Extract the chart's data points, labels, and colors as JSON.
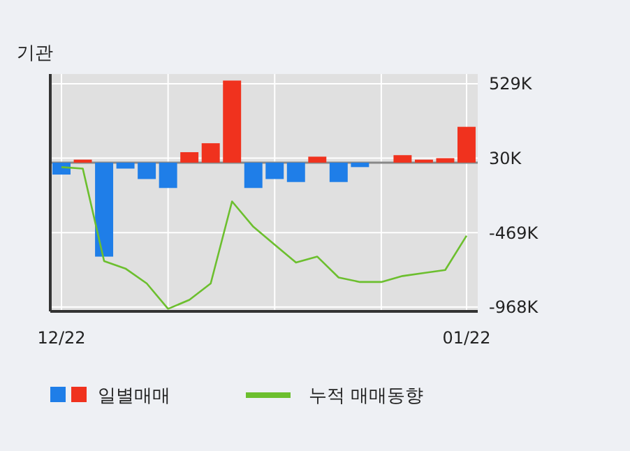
{
  "chart_data": {
    "type": "bar",
    "title": "기관",
    "categories": [
      "12/22",
      null,
      null,
      null,
      null,
      null,
      null,
      null,
      null,
      null,
      null,
      null,
      null,
      null,
      null,
      null,
      null,
      null,
      null,
      "01/22"
    ],
    "series": [
      {
        "name": "일별매매",
        "colors": [
          "#1f7ee8",
          "#f0321e",
          "#1f7ee8",
          "#1f7ee8",
          "#1f7ee8",
          "#1f7ee8",
          "#f0321e",
          "#f0321e",
          "#f0321e",
          "#1f7ee8",
          "#1f7ee8",
          "#1f7ee8",
          "#f0321e",
          "#1f7ee8",
          "#1f7ee8",
          "#f0321e",
          "#f0321e",
          "#f0321e",
          "#f0321e",
          "#f0321e"
        ],
        "values": [
          -80000,
          20000,
          -630000,
          -40000,
          -110000,
          -170000,
          70000,
          130000,
          550000,
          -170000,
          -110000,
          -130000,
          40000,
          -130000,
          -30000,
          0,
          50000,
          20000,
          30000,
          240000
        ]
      },
      {
        "type": "line",
        "name": "누적 매매동향",
        "color": "#6cbf2e",
        "values": [
          -30000,
          -40000,
          -660000,
          -710000,
          -810000,
          -980000,
          -920000,
          -810000,
          -260000,
          -430000,
          -550000,
          -670000,
          -630000,
          -770000,
          -800000,
          -800000,
          -760000,
          -740000,
          -720000,
          -490000
        ]
      }
    ],
    "ylim": [
      -997000,
      594000
    ],
    "yticks": [
      {
        "value": 529000,
        "label": "529K"
      },
      {
        "value": 30000,
        "label": "30K"
      },
      {
        "value": -469000,
        "label": "-469K"
      },
      {
        "value": -968000,
        "label": "-968K"
      }
    ],
    "grid": true,
    "legend": "bottom"
  }
}
